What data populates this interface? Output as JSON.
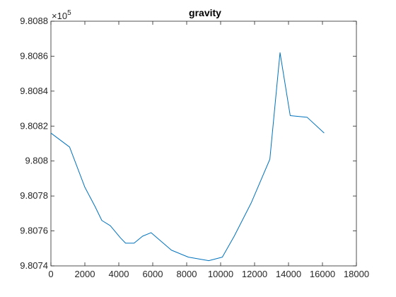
{
  "chart_data": {
    "type": "line",
    "title": "gravity",
    "xlabel": "",
    "ylabel": "",
    "xlim": [
      0,
      18000
    ],
    "ylim": [
      980740,
      980880
    ],
    "grid": false,
    "legend": "none",
    "x_ticks": [
      0,
      2000,
      4000,
      6000,
      8000,
      10000,
      12000,
      14000,
      16000,
      18000
    ],
    "x_tick_labels": [
      "0",
      "2000",
      "4000",
      "6000",
      "8000",
      "10000",
      "12000",
      "14000",
      "16000",
      "18000"
    ],
    "y_ticks": [
      980740,
      980760,
      980780,
      980800,
      980820,
      980840,
      980860,
      980880
    ],
    "y_tick_labels": [
      "9.8074",
      "9.8076",
      "9.8078",
      "9.808",
      "9.8082",
      "9.8084",
      "9.8086",
      "9.8088"
    ],
    "y_exponent_label": {
      "base": "×10",
      "power": "5"
    },
    "series": [
      {
        "color": "#0072BD",
        "x": [
          0,
          1100,
          2000,
          2600,
          3000,
          3500,
          4100,
          4400,
          4900,
          5400,
          5900,
          7100,
          8100,
          9300,
          10100,
          10800,
          11800,
          12900,
          13500,
          14100,
          15100,
          16100
        ],
        "y": [
          980816,
          980808,
          980785,
          980774,
          980766,
          980763,
          980756,
          980753,
          980753,
          980757,
          980759,
          980749,
          980745,
          980743,
          980745,
          980757,
          980776,
          980801,
          980862,
          980826,
          980825,
          980816
        ]
      }
    ]
  }
}
